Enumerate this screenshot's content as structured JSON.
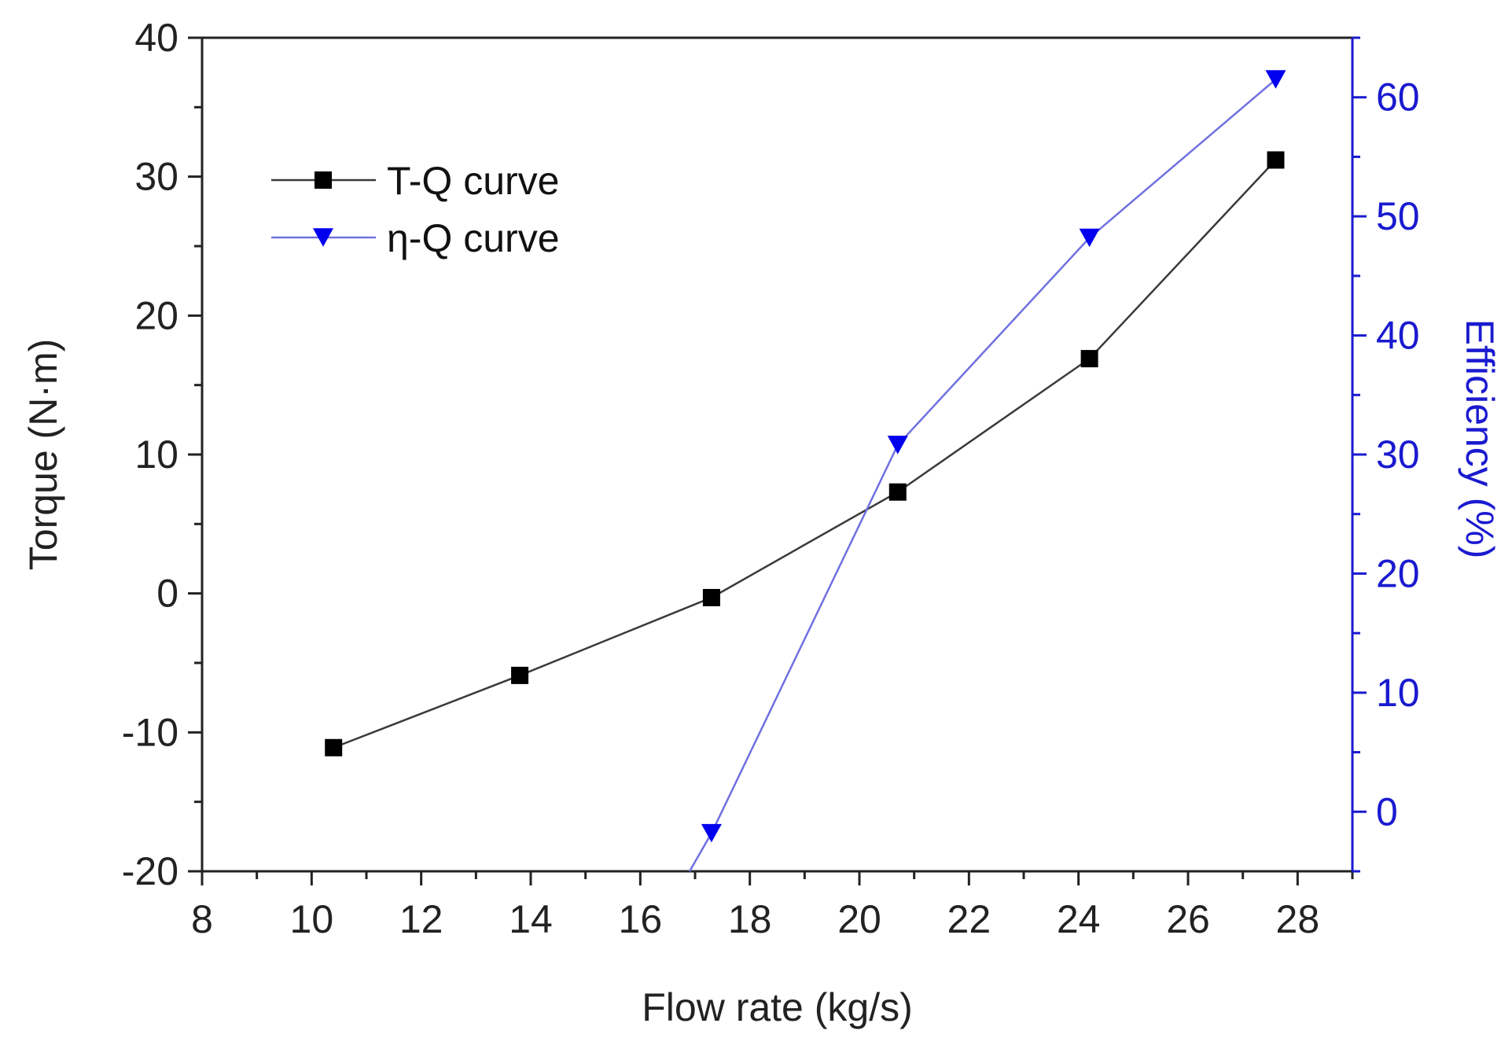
{
  "chart_data": {
    "type": "line",
    "title": "",
    "xlabel": "Flow rate  (kg/s)",
    "ylabel": "Torque (N·m)",
    "y2label": "Efficiency  (%)",
    "xlim": [
      8,
      29
    ],
    "ylim": [
      -20,
      40
    ],
    "y2lim": [
      -5,
      65
    ],
    "xticks": [
      8,
      10,
      12,
      14,
      16,
      18,
      20,
      22,
      24,
      26,
      28
    ],
    "yticks": [
      -20,
      -10,
      0,
      10,
      20,
      30,
      40
    ],
    "y2ticks": [
      0,
      10,
      20,
      30,
      40,
      50,
      60
    ],
    "legend_position": "upper-left",
    "series": [
      {
        "name": "T-Q curve",
        "axis": "left",
        "color": "#3a3a3a",
        "marker_color": "#000000",
        "marker": "square",
        "x": [
          10.4,
          13.8,
          17.3,
          20.7,
          24.2,
          27.6
        ],
        "y": [
          -11.1,
          -5.9,
          -0.3,
          7.3,
          16.9,
          31.2
        ]
      },
      {
        "name": "η-Q curve",
        "axis": "right",
        "color": "#7070e0",
        "marker_color": "#0000ee",
        "marker": "triangle-down",
        "x": [
          16.9,
          17.3,
          20.7,
          24.2,
          27.6
        ],
        "y": [
          -5.0,
          -1.8,
          30.8,
          48.2,
          61.5
        ],
        "marker_points": [
          1,
          2,
          3,
          4
        ]
      }
    ],
    "colors": {
      "axis": "#222222",
      "right_axis": "#1a1ad0"
    }
  }
}
